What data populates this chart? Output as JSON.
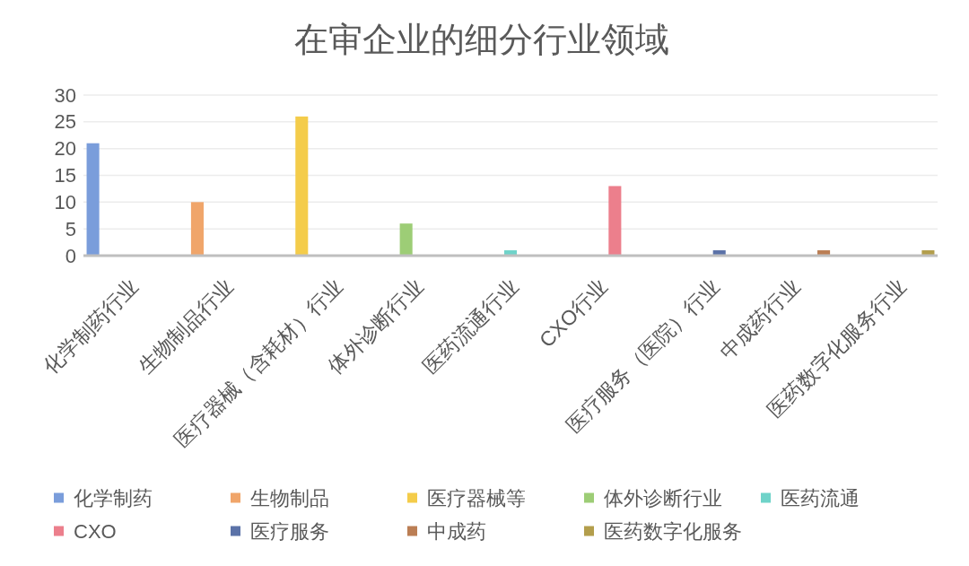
{
  "chart_data": {
    "type": "bar",
    "title": "在审企业的细分行业领域",
    "categories": [
      "化学制药行业",
      "生物制品行业",
      "医疗器械（含耗材）行业",
      "体外诊断行业",
      "医药流通行业",
      "CXO行业",
      "医疗服务（医院）行业",
      "中成药行业",
      "医药数字化服务行业"
    ],
    "series": [
      {
        "name": "化学制药",
        "color": "#7a9ddb",
        "values": [
          21,
          null,
          null,
          null,
          null,
          null,
          null,
          null,
          null
        ]
      },
      {
        "name": "生物制品",
        "color": "#f0a56a",
        "values": [
          null,
          10,
          null,
          null,
          null,
          null,
          null,
          null,
          null
        ]
      },
      {
        "name": "医疗器械等",
        "color": "#f4cc4a",
        "values": [
          null,
          null,
          26,
          null,
          null,
          null,
          null,
          null,
          null
        ]
      },
      {
        "name": "体外诊断行业",
        "color": "#9dcd76",
        "values": [
          null,
          null,
          null,
          6,
          null,
          null,
          null,
          null,
          null
        ]
      },
      {
        "name": "医药流通",
        "color": "#6fd3c9",
        "values": [
          null,
          null,
          null,
          null,
          1,
          null,
          null,
          null,
          null
        ]
      },
      {
        "name": "CXO",
        "color": "#ec7f8c",
        "values": [
          null,
          null,
          null,
          null,
          null,
          13,
          null,
          null,
          null
        ]
      },
      {
        "name": "医疗服务",
        "color": "#5b72a8",
        "values": [
          null,
          null,
          null,
          null,
          null,
          null,
          1,
          null,
          null
        ]
      },
      {
        "name": "中成药",
        "color": "#bb7e54",
        "values": [
          null,
          null,
          null,
          null,
          null,
          null,
          null,
          1,
          null
        ]
      },
      {
        "name": "医药数字化服务",
        "color": "#b39e4c",
        "values": [
          null,
          null,
          null,
          null,
          null,
          null,
          null,
          null,
          1
        ]
      }
    ],
    "ylim": [
      0,
      30
    ],
    "yticks": [
      0,
      5,
      10,
      15,
      20,
      25,
      30
    ],
    "grid": "y",
    "legend": "bottom"
  }
}
